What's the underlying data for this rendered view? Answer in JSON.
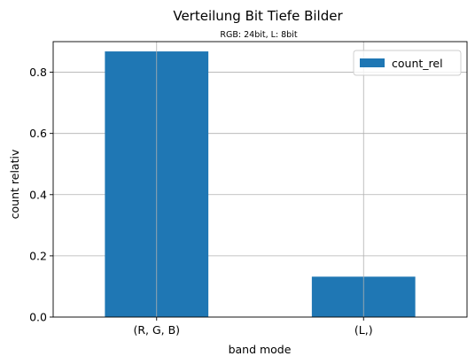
{
  "chart_data": {
    "type": "bar",
    "title": "Verteilung Bit Tiefe Bilder",
    "subtitle": "RGB: 24bit, L: 8bit",
    "xlabel": "band mode",
    "ylabel": "count relativ",
    "categories": [
      "(R, G, B)",
      "(L,)"
    ],
    "series": [
      {
        "name": "count_rel",
        "values": [
          0.868,
          0.132
        ]
      }
    ],
    "ylim": [
      0,
      0.9
    ],
    "yticks": [
      0.0,
      0.2,
      0.4,
      0.6,
      0.8
    ],
    "ytick_labels": [
      "0.0",
      "0.2",
      "0.4",
      "0.6",
      "0.8"
    ],
    "grid": true,
    "legend_position": "top-right",
    "colors": {
      "bar": "#1f77b4",
      "grid": "#b0b0b0",
      "axis": "#000000"
    }
  }
}
